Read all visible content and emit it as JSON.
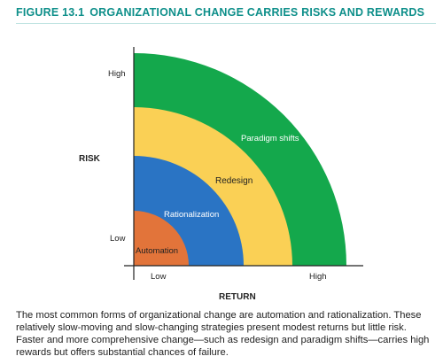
{
  "figure": {
    "number": "FIGURE 13.1",
    "title": "ORGANIZATIONAL CHANGE CARRIES RISKS AND REWARDS"
  },
  "diagram": {
    "risk_label": "RISK",
    "return_label": "RETURN",
    "risk_ticks": {
      "high": "High",
      "low": "Low"
    },
    "return_ticks": {
      "low": "Low",
      "high": "High"
    },
    "bands": [
      {
        "name": "Automation",
        "color": "#e2743a"
      },
      {
        "name": "Rationalization",
        "color": "#2a74c4"
      },
      {
        "name": "Redesign",
        "color": "#fad055"
      },
      {
        "name": "Paradigm shifts",
        "color": "#14a84c"
      }
    ]
  },
  "caption": "The most common forms of organizational change are automation and rationalization. These relatively slow-moving and slow-changing strategies present modest returns but little risk. Faster and more comprehensive change—such as redesign and paradigm shifts—carries high rewards but offers substantial chances of failure."
}
